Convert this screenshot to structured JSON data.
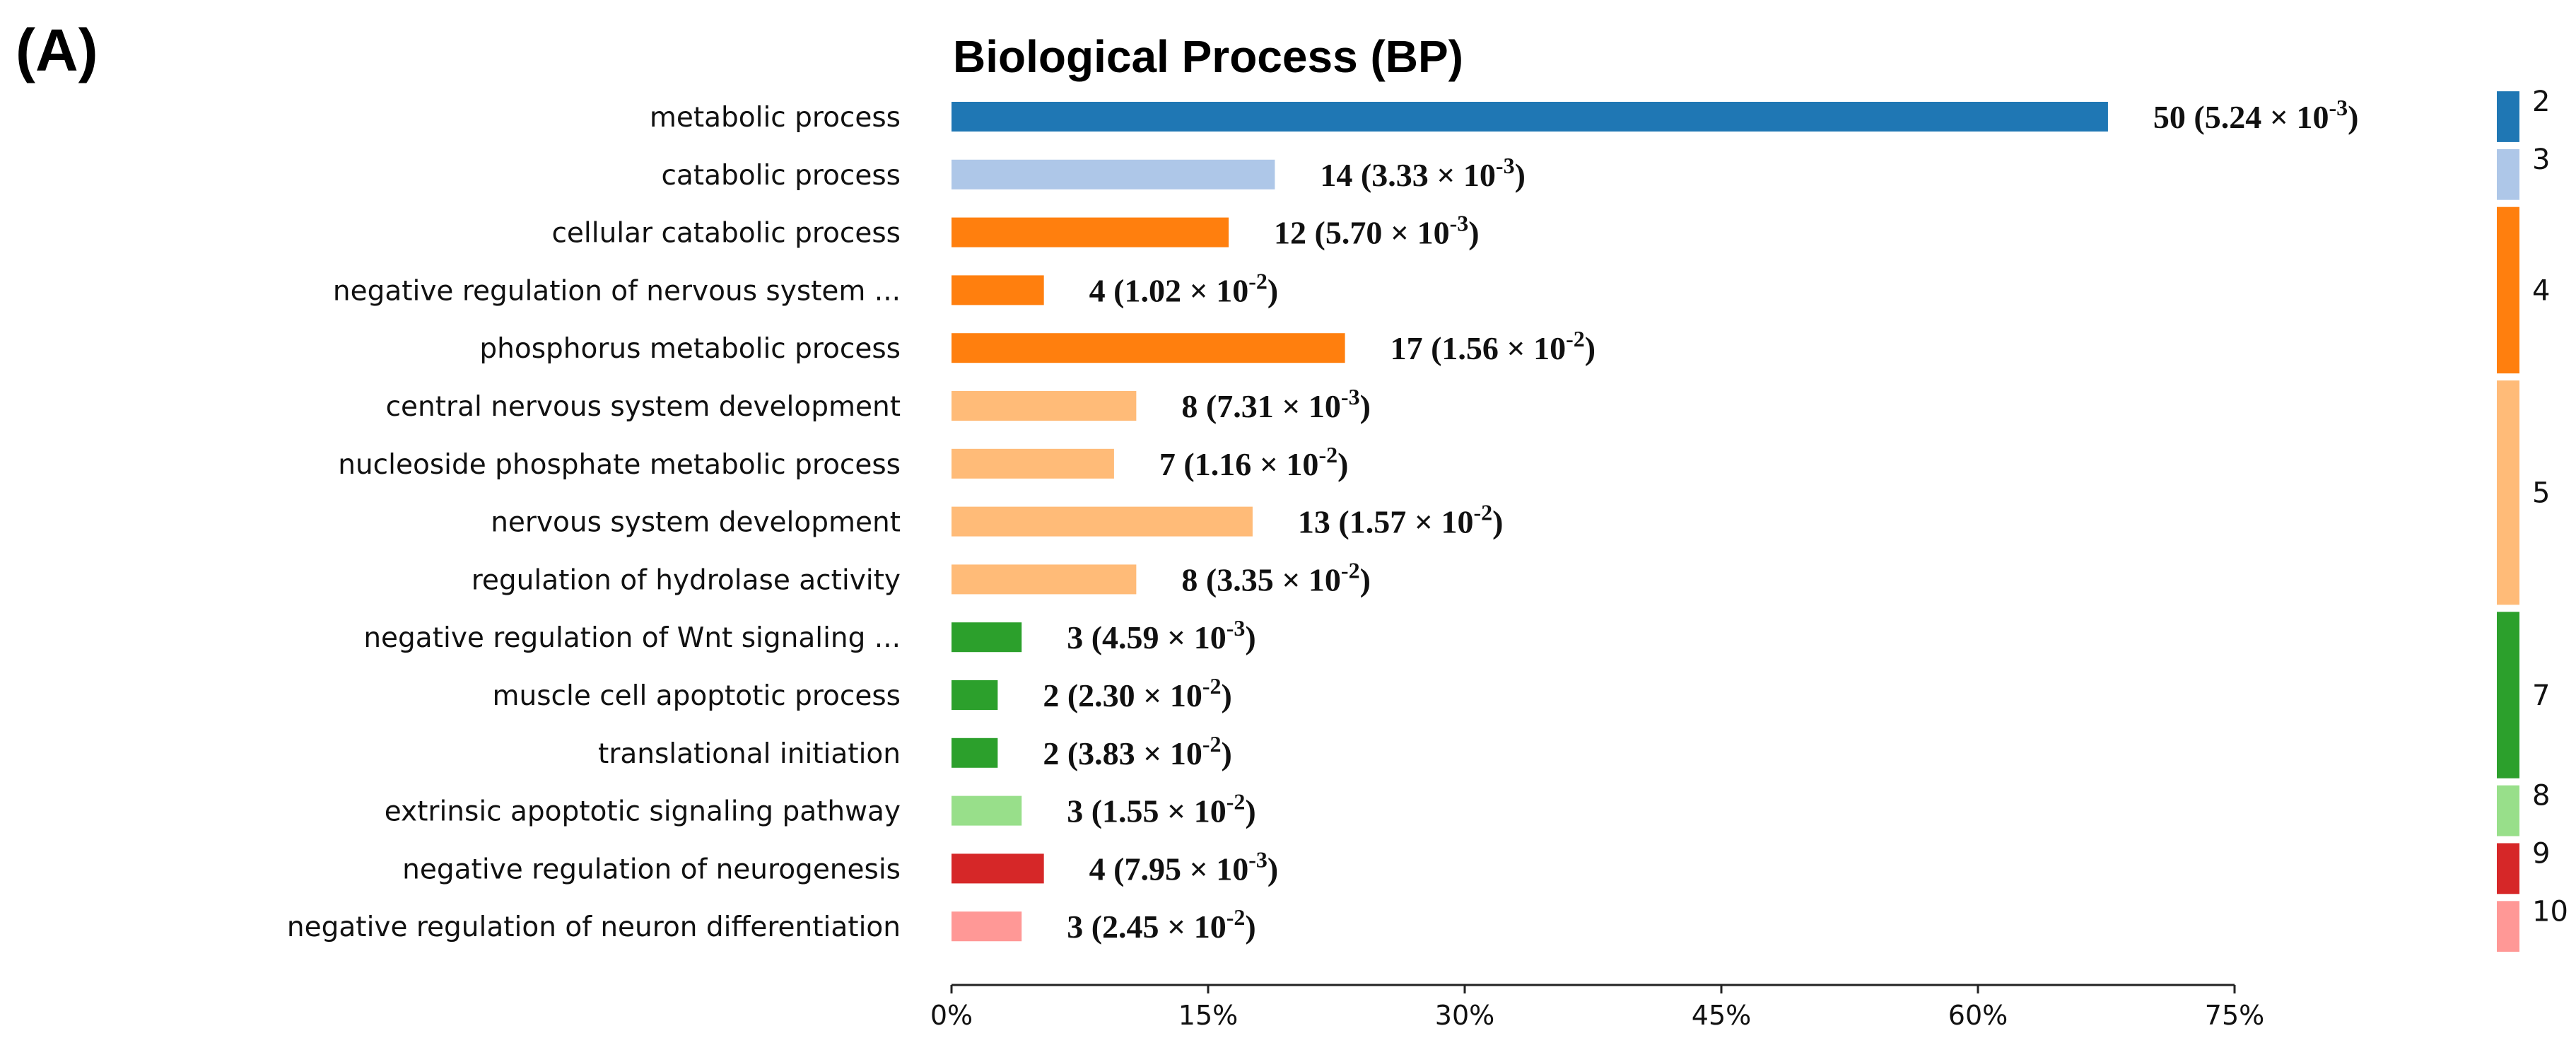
{
  "panel_label": "(A)",
  "chart_data": {
    "type": "bar",
    "orientation": "horizontal",
    "title": "Biological Process (BP)",
    "xlabel": "",
    "ylabel": "",
    "xlim": [
      0,
      75
    ],
    "x_ticks": [
      "0%",
      "15%",
      "30%",
      "45%",
      "60%",
      "75%"
    ],
    "grid": false,
    "categories": [
      "metabolic process",
      "catabolic process",
      "cellular catabolic process",
      "negative regulation of nervous system ...",
      "phosphorus metabolic process",
      "central nervous system development",
      "nucleoside phosphate metabolic process",
      "nervous system development",
      "regulation of hydrolase activity",
      "negative regulation of Wnt signaling ...",
      "muscle cell apoptotic process",
      "translational initiation",
      "extrinsic apoptotic signaling pathway",
      "negative regulation of neurogenesis",
      "negative regulation of neuron differentiation"
    ],
    "values": [
      67.6,
      18.9,
      16.2,
      5.4,
      23.0,
      10.8,
      9.5,
      17.6,
      10.8,
      4.1,
      2.7,
      2.7,
      4.1,
      5.4,
      4.1
    ],
    "counts": [
      "50",
      "14",
      "12",
      "4",
      "17",
      "8",
      "7",
      "13",
      "8",
      "3",
      "2",
      "2",
      "3",
      "4",
      "3"
    ],
    "pvalue_mantissa": [
      "5.24",
      "3.33",
      "5.70",
      "1.02",
      "1.56",
      "7.31",
      "1.16",
      "1.57",
      "3.35",
      "4.59",
      "2.30",
      "3.83",
      "1.55",
      "7.95",
      "2.45"
    ],
    "pvalue_exponent": [
      "-3",
      "-3",
      "-3",
      "-2",
      "-2",
      "-3",
      "-2",
      "-2",
      "-2",
      "-3",
      "-2",
      "-2",
      "-2",
      "-3",
      "-2"
    ],
    "colors": [
      "#1f77b4",
      "#aec7e8",
      "#ff7f0e",
      "#ff7f0e",
      "#ff7f0e",
      "#ffbb78",
      "#ffbb78",
      "#ffbb78",
      "#ffbb78",
      "#2ca02c",
      "#2ca02c",
      "#2ca02c",
      "#98df8a",
      "#d62728",
      "#ff9896"
    ],
    "clusters": [
      {
        "label": "2",
        "start": 0,
        "end": 0,
        "color": "#1f77b4"
      },
      {
        "label": "3",
        "start": 1,
        "end": 1,
        "color": "#aec7e8"
      },
      {
        "label": "4",
        "start": 2,
        "end": 4,
        "color": "#ff7f0e"
      },
      {
        "label": "5",
        "start": 5,
        "end": 8,
        "color": "#ffbb78"
      },
      {
        "label": "7",
        "start": 9,
        "end": 11,
        "color": "#2ca02c"
      },
      {
        "label": "8",
        "start": 12,
        "end": 12,
        "color": "#98df8a"
      },
      {
        "label": "9",
        "start": 13,
        "end": 13,
        "color": "#d62728"
      },
      {
        "label": "10",
        "start": 14,
        "end": 14,
        "color": "#ff9896"
      }
    ]
  }
}
